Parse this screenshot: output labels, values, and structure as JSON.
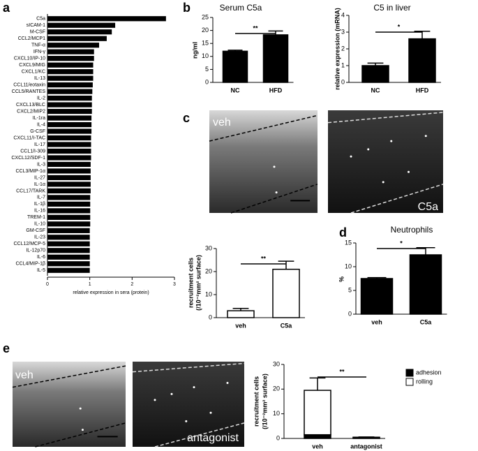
{
  "panel_labels": [
    "a",
    "b",
    "c",
    "d",
    "e"
  ],
  "chart_data": [
    {
      "type": "hbar",
      "xlabel": "relative expression in sera (protein)",
      "categories": [
        "C5a",
        "sICAM-1",
        "M-CSF",
        "CCL2/MCP1",
        "TNF-α",
        "IFN-γ",
        "CXCL10/IP-10",
        "CXCL9/MIG",
        "CXCL1/KC",
        "IL-13",
        "CCL11/eotaxin",
        "CCL5/RANTES",
        "IL-2",
        "CXCL13/BLC",
        "CXCL2/MIP2",
        "IL-1ra",
        "IL-4",
        "G-CSF",
        "CXCL11/I-TAC",
        "IL-17",
        "CCL1/I-309",
        "CXCL12/SDF-1",
        "IL-3",
        "CCL3/MIP-1α",
        "IL-27",
        "IL-1α",
        "CCL17/TARK",
        "IL-7",
        "IL-1β",
        "IL-16",
        "TREM-1",
        "IL-10",
        "GM-CSF",
        "IL-23",
        "CCL12/MCP-5",
        "IL-12p70",
        "IL-6",
        "CCL4/MIP-1β",
        "IL-5"
      ],
      "values": [
        2.8,
        1.6,
        1.52,
        1.4,
        1.22,
        1.1,
        1.1,
        1.08,
        1.08,
        1.08,
        1.07,
        1.06,
        1.05,
        1.05,
        1.05,
        1.04,
        1.04,
        1.04,
        1.03,
        1.03,
        1.03,
        1.03,
        1.02,
        1.02,
        1.02,
        1.02,
        1.02,
        1.01,
        1.01,
        1.01,
        1.01,
        1.01,
        1.0,
        1.0,
        1.0,
        1.0,
        1.0,
        1.0,
        1.0
      ],
      "color": "#000000",
      "xlim": [
        0,
        3
      ],
      "xticks": [
        0,
        1,
        2,
        3
      ]
    },
    {
      "type": "bar",
      "title": "Serum C5a",
      "ylabel": "ng/ml",
      "categories": [
        "NC",
        "HFD"
      ],
      "values": [
        12,
        18.3
      ],
      "errors": [
        0.4,
        1.5
      ],
      "color": "#000000",
      "significance": "**",
      "ylim": [
        0,
        25
      ],
      "yticks": [
        0,
        5,
        10,
        15,
        20,
        25
      ]
    },
    {
      "type": "bar",
      "title": "C5 in liver",
      "ylabel": "relative expression (mRNA)",
      "categories": [
        "NC",
        "HFD"
      ],
      "values": [
        1.0,
        2.6
      ],
      "errors": [
        0.15,
        0.45
      ],
      "color": "#000000",
      "significance": "*",
      "ylim": [
        0,
        4
      ],
      "yticks": [
        0,
        1,
        2,
        3,
        4
      ]
    },
    {
      "type": "micrograph",
      "labels": [
        "veh",
        "C5a"
      ]
    },
    {
      "type": "bar",
      "ylabel": [
        "recruitment cells",
        "(/10⁻²mm² surface)"
      ],
      "categories": [
        "veh",
        "C5a"
      ],
      "values": [
        3,
        21
      ],
      "errors": [
        1,
        3.5
      ],
      "color": "#ffffff",
      "significance": "**",
      "ylim": [
        0,
        30
      ],
      "yticks": [
        0,
        10,
        20,
        30
      ]
    },
    {
      "type": "bar",
      "title": "Neutrophils",
      "ylabel": "%",
      "categories": [
        "veh",
        "C5a"
      ],
      "values": [
        7.5,
        12.5
      ],
      "errors": [
        0.2,
        1.5
      ],
      "color": "#000000",
      "significance": "*",
      "ylim": [
        0,
        15
      ],
      "yticks": [
        0,
        5,
        10,
        15
      ]
    },
    {
      "type": "micrograph",
      "labels": [
        "veh",
        "antagonist"
      ]
    },
    {
      "type": "stacked_bar",
      "ylabel": [
        "recruitment cells",
        "(/10⁻²mm² surface)"
      ],
      "categories": [
        "veh",
        "antagonist"
      ],
      "series": [
        {
          "name": "adhesion",
          "color": "#000000",
          "values": [
            1.5,
            0.3
          ],
          "errors": [
            0.8,
            0.1
          ]
        },
        {
          "name": "rolling",
          "color": "#ffffff",
          "values": [
            18,
            0.2
          ],
          "errors": [
            5,
            0.1
          ]
        }
      ],
      "significance": "**",
      "ylim": [
        0,
        30
      ],
      "yticks": [
        0,
        10,
        20,
        30
      ]
    }
  ]
}
